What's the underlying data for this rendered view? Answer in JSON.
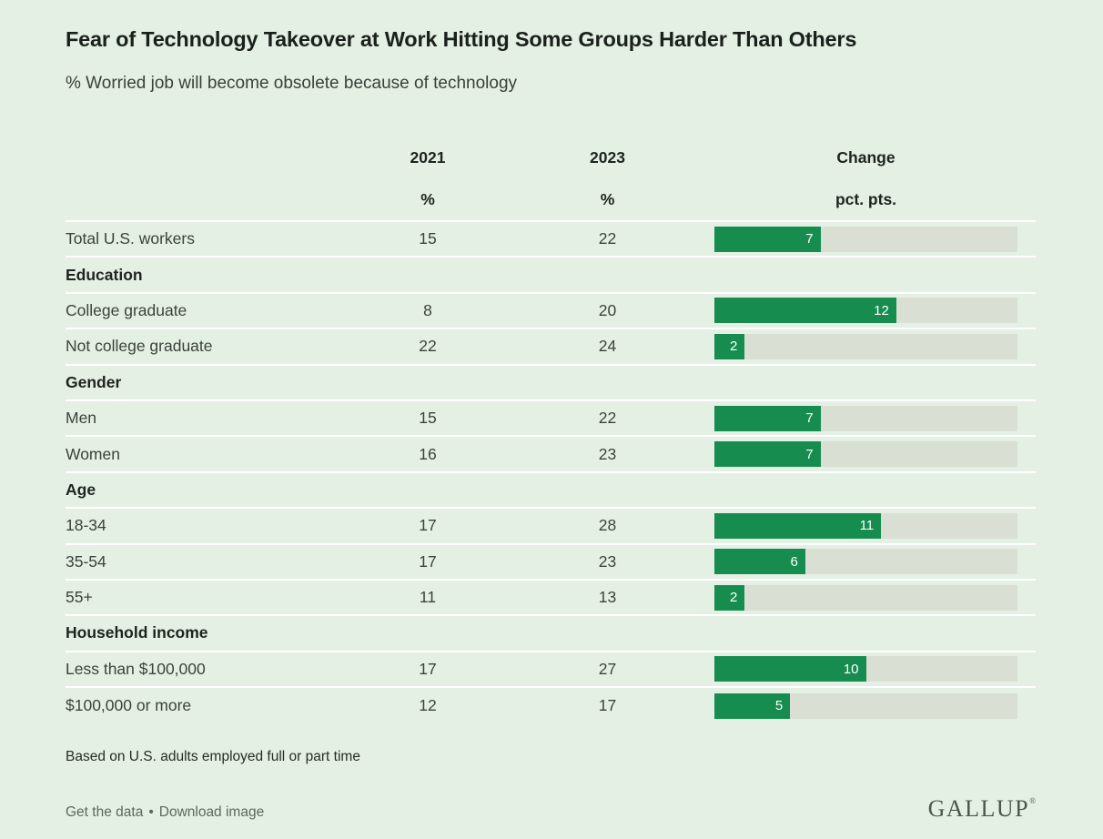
{
  "page": {
    "title": "Fear of Technology Takeover at Work Hitting Some Groups Harder Than Others",
    "subtitle": "% Worried job will become obsolete because of technology",
    "footnote": "Based on U.S. adults employed full or part time"
  },
  "table": {
    "header": {
      "col_2021": "2021",
      "col_2023": "2023",
      "col_change": "Change",
      "unit_2021": "%",
      "unit_2023": "%",
      "unit_change": "pct. pts."
    },
    "rows": [
      {
        "label": "Total U.S. workers",
        "v2021": "15",
        "v2023": "22",
        "change": 7
      },
      {
        "label": "Education",
        "section": true
      },
      {
        "label": "College graduate",
        "v2021": "8",
        "v2023": "20",
        "change": 12
      },
      {
        "label": "Not college graduate",
        "v2021": "22",
        "v2023": "24",
        "change": 2
      },
      {
        "label": "Gender",
        "section": true
      },
      {
        "label": "Men",
        "v2021": "15",
        "v2023": "22",
        "change": 7
      },
      {
        "label": "Women",
        "v2021": "16",
        "v2023": "23",
        "change": 7
      },
      {
        "label": "Age",
        "section": true
      },
      {
        "label": "18-34",
        "v2021": "17",
        "v2023": "28",
        "change": 11
      },
      {
        "label": "35-54",
        "v2021": "17",
        "v2023": "23",
        "change": 6
      },
      {
        "label": "55+",
        "v2021": "11",
        "v2023": "13",
        "change": 2
      },
      {
        "label": "Household income",
        "section": true
      },
      {
        "label": "Less than $100,000",
        "v2021": "17",
        "v2023": "27",
        "change": 10
      },
      {
        "label": "$100,000 or more",
        "v2021": "12",
        "v2023": "17",
        "change": 5
      }
    ]
  },
  "chart_data": {
    "type": "bar",
    "orientation": "horizontal",
    "title": "Fear of Technology Takeover at Work Hitting Some Groups Harder Than Others",
    "subtitle": "% Worried job will become obsolete because of technology",
    "categories": [
      "Total U.S. workers",
      "College graduate",
      "Not college graduate",
      "Men",
      "Women",
      "18-34",
      "35-54",
      "55+",
      "Less than $100,000",
      "$100,000 or more"
    ],
    "category_groups": [
      "Total",
      "Education",
      "Education",
      "Gender",
      "Gender",
      "Age",
      "Age",
      "Age",
      "Household income",
      "Household income"
    ],
    "series": [
      {
        "name": "2021 %",
        "values": [
          15,
          8,
          22,
          15,
          16,
          17,
          17,
          11,
          17,
          12
        ]
      },
      {
        "name": "2023 %",
        "values": [
          22,
          20,
          24,
          22,
          23,
          28,
          23,
          13,
          27,
          17
        ]
      },
      {
        "name": "Change pct. pts.",
        "values": [
          7,
          12,
          2,
          7,
          7,
          11,
          6,
          2,
          10,
          5
        ]
      }
    ],
    "bar_axis": {
      "label": "Change (pct. pts.)",
      "xmin": 0,
      "xmax": 20
    },
    "grid": false,
    "legend_position": "column-headers",
    "note": "Based on U.S. adults employed full or part time"
  },
  "footer": {
    "links": [
      {
        "label": "Get the data"
      },
      {
        "label": "Download image"
      }
    ],
    "separator": "•",
    "logo": "GALLUP",
    "logo_mark": "®"
  },
  "colors": {
    "background": "#e4f0e3",
    "accent_green": "#168d4f",
    "bar_track": "#d9e0d3",
    "row_divider": "#ffffff",
    "bar_value_text": "#ffffff"
  }
}
